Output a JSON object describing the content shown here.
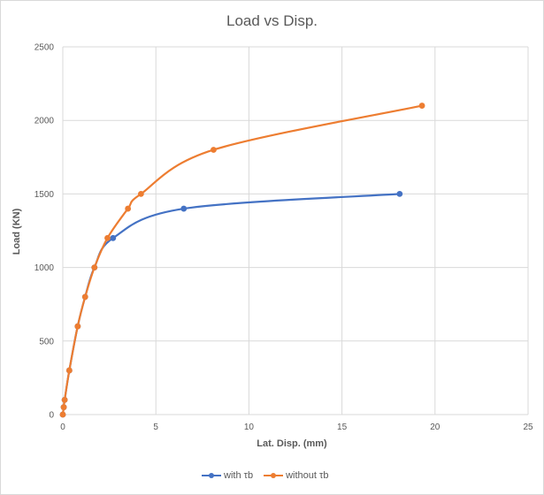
{
  "chart_data": {
    "type": "scatter",
    "title": "Load vs Disp.",
    "xlabel": "Lat. Disp. (mm)",
    "ylabel": "Load  (KN)",
    "xlim": [
      0,
      25
    ],
    "ylim": [
      0,
      2500
    ],
    "xticks": [
      0,
      5,
      10,
      15,
      20,
      25
    ],
    "yticks": [
      0,
      500,
      1000,
      1500,
      2000,
      2500
    ],
    "grid": true,
    "smooth": true,
    "legend": "bottom",
    "series": [
      {
        "name": "with τb",
        "color": "#4472C4",
        "x": [
          0,
          0.05,
          0.1,
          0.35,
          0.8,
          1.2,
          1.7,
          2.7,
          6.5,
          18.1
        ],
        "y": [
          0,
          50,
          100,
          300,
          600,
          800,
          1000,
          1200,
          1400,
          1500
        ]
      },
      {
        "name": "without τb",
        "color": "#ED7D31",
        "x": [
          0,
          0.05,
          0.1,
          0.35,
          0.8,
          1.2,
          1.7,
          2.4,
          3.5,
          4.2,
          8.1,
          19.3
        ],
        "y": [
          0,
          50,
          100,
          300,
          600,
          800,
          1000,
          1200,
          1400,
          1500,
          1800,
          2100
        ]
      }
    ]
  }
}
